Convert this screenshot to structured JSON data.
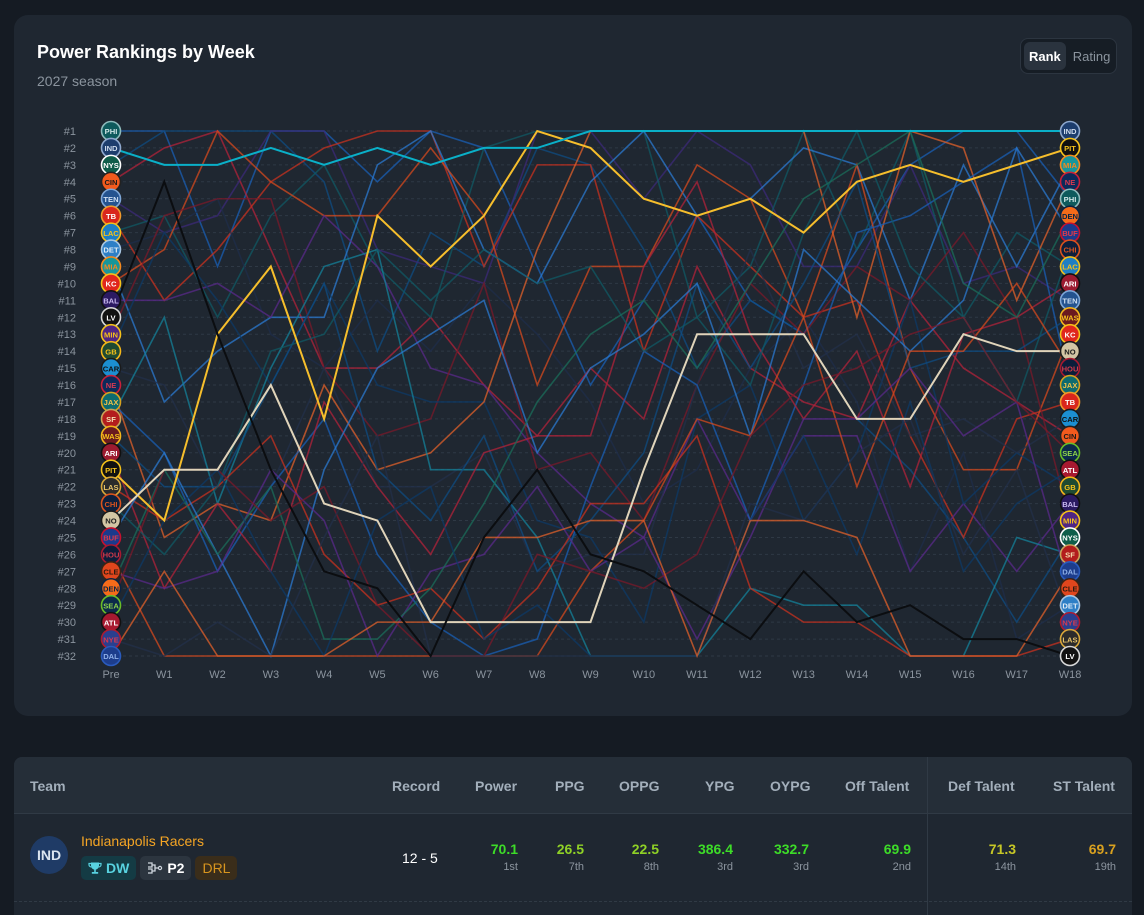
{
  "header": {
    "title": "Power Rankings by Week",
    "subtitle": "2027 season"
  },
  "toggle": {
    "options": [
      "Rank",
      "Rating"
    ],
    "active": "Rank"
  },
  "chart_data": {
    "type": "line",
    "title": "Power Rankings by Week",
    "subtitle": "2027 season",
    "y_tick_labels": [
      "#1",
      "#2",
      "#3",
      "#4",
      "#5",
      "#6",
      "#7",
      "#8",
      "#9",
      "#10",
      "#11",
      "#12",
      "#13",
      "#14",
      "#15",
      "#16",
      "#17",
      "#18",
      "#19",
      "#20",
      "#21",
      "#22",
      "#23",
      "#24",
      "#25",
      "#26",
      "#27",
      "#28",
      "#29",
      "#30",
      "#31",
      "#32"
    ],
    "weeks": [
      "Pre",
      "W1",
      "W2",
      "W3",
      "W4",
      "W5",
      "W6",
      "W7",
      "W8",
      "W9",
      "W10",
      "W11",
      "W12",
      "W13",
      "W14",
      "W15",
      "W16",
      "W17",
      "W18"
    ],
    "ylim": [
      1,
      32
    ],
    "y_inverted": true,
    "preseason_order": [
      "PHI",
      "IND",
      "NYS",
      "CIN",
      "TEN",
      "TB",
      "LAC",
      "DET",
      "MIA",
      "KC",
      "BAL",
      "LV",
      "MIN",
      "GB",
      "CAR",
      "NE",
      "JAX",
      "SF",
      "WAS",
      "ARI",
      "PIT",
      "LAS",
      "CHI",
      "NO",
      "BUF",
      "HOU",
      "CLE",
      "DEN",
      "SEA",
      "ATL",
      "NYE",
      "DAL"
    ],
    "final_order": [
      "IND",
      "PIT",
      "MIA",
      "NE",
      "PHI",
      "DEN",
      "BUF",
      "CHI",
      "LAC",
      "ARI",
      "TEN",
      "WAS",
      "KC",
      "NO",
      "HOU",
      "JAX",
      "TB",
      "CAR",
      "CIN",
      "SEA",
      "ATL",
      "GB",
      "BAL",
      "MIN",
      "NYS",
      "SF",
      "DAL",
      "CLE",
      "DET",
      "NYE",
      "LAS",
      "LV"
    ],
    "teams": {
      "PHI": {
        "fill": "#0e5a5c",
        "stroke": "#8fbcbd",
        "text": "#cfe6e6"
      },
      "IND": {
        "fill": "#1d3d6d",
        "stroke": "#8fa9cf",
        "text": "#cfdcee"
      },
      "NYS": {
        "fill": "#0f5d4a",
        "stroke": "#ffffff",
        "text": "#ffffff"
      },
      "CIN": {
        "fill": "#f25a1d",
        "stroke": "#222222",
        "text": "#1a1a1a"
      },
      "TEN": {
        "fill": "#24538f",
        "stroke": "#7ea7d8",
        "text": "#cfe0f4"
      },
      "TB": {
        "fill": "#d9261c",
        "stroke": "#f09a2c",
        "text": "#ffffff"
      },
      "LAC": {
        "fill": "#1f7fc4",
        "stroke": "#f5c21a",
        "text": "#f5c21a"
      },
      "DET": {
        "fill": "#2e7fc6",
        "stroke": "#a9c6e2",
        "text": "#e3eef8"
      },
      "MIA": {
        "fill": "#17969b",
        "stroke": "#f58a1f",
        "text": "#f58a1f"
      },
      "KC": {
        "fill": "#e0271d",
        "stroke": "#f5c21a",
        "text": "#ffffff"
      },
      "BAL": {
        "fill": "#2b1a62",
        "stroke": "#111111",
        "text": "#c8b8ee"
      },
      "LV": {
        "fill": "#121212",
        "stroke": "#d8d8d8",
        "text": "#ffffff"
      },
      "MIN": {
        "fill": "#4f2683",
        "stroke": "#f5c21a",
        "text": "#f5c21a"
      },
      "GB": {
        "fill": "#1f4a32",
        "stroke": "#f5b81a",
        "text": "#f5c21a"
      },
      "CAR": {
        "fill": "#1c8fd1",
        "stroke": "#1a1a1a",
        "text": "#101010"
      },
      "NE": {
        "fill": "#0c2a5a",
        "stroke": "#c8203a",
        "text": "#d63a52"
      },
      "JAX": {
        "fill": "#0e6b6f",
        "stroke": "#d8a21f",
        "text": "#f0c24a"
      },
      "SF": {
        "fill": "#b31d1d",
        "stroke": "#c8a45a",
        "text": "#f4e0b0"
      },
      "WAS": {
        "fill": "#6a1a1f",
        "stroke": "#f5b51a",
        "text": "#f5c21a"
      },
      "ARI": {
        "fill": "#9c1b30",
        "stroke": "#111111",
        "text": "#ffffff"
      },
      "PIT": {
        "fill": "#111111",
        "stroke": "#f5c21a",
        "text": "#f5c21a"
      },
      "LAS": {
        "fill": "#2b2b2b",
        "stroke": "#d8a83a",
        "text": "#e8c46a"
      },
      "CHI": {
        "fill": "#0d1f3c",
        "stroke": "#d9531e",
        "text": "#d9531e"
      },
      "NO": {
        "fill": "#d3c6a4",
        "stroke": "#1a1a1a",
        "text": "#1a1a1a"
      },
      "BUF": {
        "fill": "#1b3a8c",
        "stroke": "#c8102e",
        "text": "#e23a4a"
      },
      "HOU": {
        "fill": "#0b1d3a",
        "stroke": "#a71930",
        "text": "#d03a4a"
      },
      "CLE": {
        "fill": "#e0461d",
        "stroke": "#3a2314",
        "text": "#2a1a10"
      },
      "DEN": {
        "fill": "#f56b1a",
        "stroke": "#0a2343",
        "text": "#0a2343"
      },
      "SEA": {
        "fill": "#0c2a4a",
        "stroke": "#69be28",
        "text": "#8fd44a"
      },
      "ATL": {
        "fill": "#a71930",
        "stroke": "#111111",
        "text": "#ffffff"
      },
      "NYE": {
        "fill": "#2a3f8f",
        "stroke": "#b01a2f",
        "text": "#d63a52"
      },
      "DAL": {
        "fill": "#1d3d8c",
        "stroke": "#2a5bbd",
        "text": "#8fb0e8"
      }
    },
    "highlight_series": [
      {
        "team": "PIT",
        "color": "#f6be2c",
        "ranks": [
          21,
          24,
          13,
          9,
          18,
          6,
          9,
          6,
          1,
          2,
          5,
          6,
          5,
          7,
          4,
          3,
          4,
          3,
          2
        ]
      },
      {
        "team": "NO",
        "color": "#e0d4ba",
        "ranks": [
          24,
          21,
          21,
          16,
          23,
          24,
          30,
          30,
          30,
          30,
          21,
          13,
          13,
          13,
          18,
          18,
          13,
          14,
          14
        ]
      },
      {
        "team": "LV",
        "color": "#0b0d10",
        "ranks": [
          12,
          4,
          13,
          21,
          27,
          28,
          32,
          25,
          21,
          26,
          27,
          29,
          31,
          27,
          30,
          29,
          31,
          31,
          32
        ]
      },
      {
        "team": "IND",
        "color": "#0ab0c8",
        "ranks": [
          2,
          3,
          3,
          2,
          3,
          2,
          3,
          2,
          2,
          1,
          1,
          1,
          1,
          1,
          1,
          1,
          1,
          1,
          1
        ]
      }
    ]
  },
  "table": {
    "columns": [
      "Team",
      "Record",
      "Power",
      "PPG",
      "OPPG",
      "YPG",
      "OYPG",
      "Off Talent",
      "Def Talent",
      "ST Talent"
    ],
    "rows": [
      {
        "abbr": "IND",
        "name": "Indianapolis Racers",
        "badges": [
          {
            "icon": "trophy-icon",
            "label": "DW"
          },
          {
            "icon": "bracket-icon",
            "label": "P2"
          },
          {
            "icon": "",
            "label": "DRL"
          }
        ],
        "record": "12 - 5",
        "stats": [
          {
            "value": "70.1",
            "rank": "1st",
            "color": "#3ddc28"
          },
          {
            "value": "26.5",
            "rank": "7th",
            "color": "#8fd126"
          },
          {
            "value": "22.5",
            "rank": "8th",
            "color": "#8fd126"
          },
          {
            "value": "386.4",
            "rank": "3rd",
            "color": "#3ddc28"
          },
          {
            "value": "332.7",
            "rank": "3rd",
            "color": "#3ddc28"
          },
          {
            "value": "69.9",
            "rank": "2nd",
            "color": "#3ddc28"
          },
          {
            "value": "71.3",
            "rank": "14th",
            "color": "#c7c726"
          },
          {
            "value": "69.7",
            "rank": "19th",
            "color": "#d9a11f"
          }
        ]
      }
    ]
  }
}
